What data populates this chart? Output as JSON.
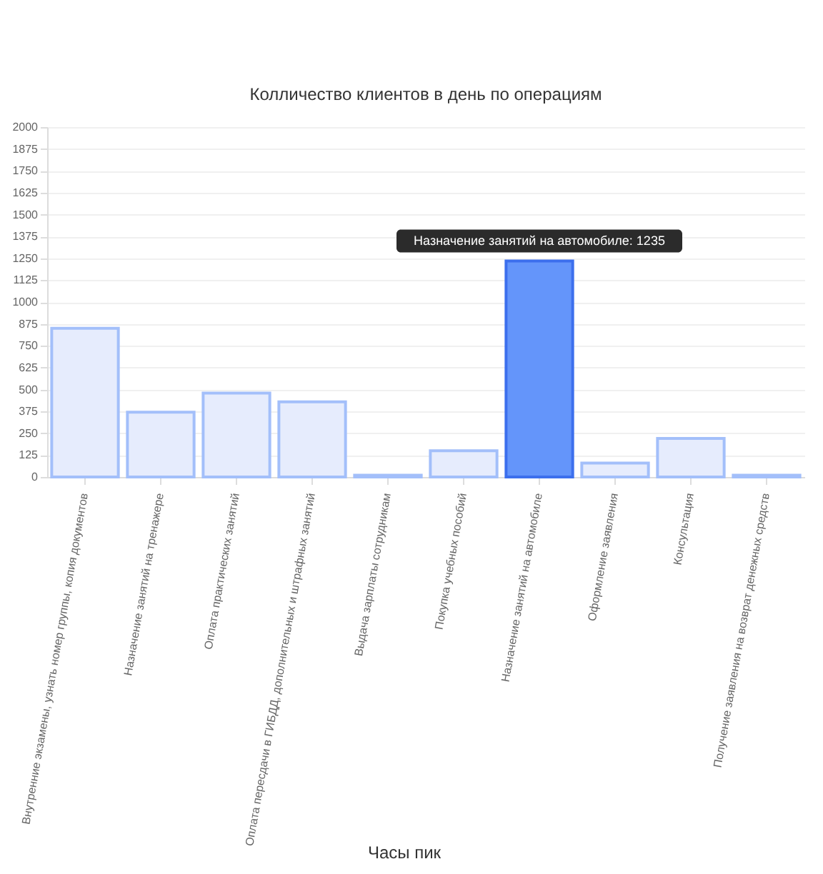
{
  "chart_data": {
    "type": "bar",
    "title": "Колличество клиентов в день по операциям",
    "categories": [
      "Внутренние экзамены, узнать номер группы, копия документов",
      "Назначение занятий на тренажере",
      "Оплата практических занятий",
      "Оплата пересдачи в ГИБДД, дополнительных и штрафных занятий",
      "Выдача зарплаты сотрудникам",
      "Покупка учебных пособий",
      "Назначение занятий на автомобиле",
      "Оформление заявления",
      "Консультация",
      "Получение заявления на возврат денежных средств"
    ],
    "values": [
      850,
      370,
      480,
      430,
      10,
      150,
      1235,
      80,
      220,
      10
    ],
    "colors": [
      "#e6ecfd",
      "#e6ecfd",
      "#e6ecfd",
      "#e6ecfd",
      "#e6ecfd",
      "#e6ecfd",
      "#6495fa",
      "#e6ecfd",
      "#e6ecfd",
      "#e6ecfd"
    ],
    "ylim": [
      0,
      2000
    ],
    "yticks": [
      0,
      125,
      250,
      375,
      500,
      625,
      750,
      875,
      1000,
      1125,
      1250,
      1375,
      1500,
      1625,
      1750,
      1875,
      2000
    ],
    "grid": "y",
    "annotations": [
      {
        "text": "Назначение занятий на автомобиле: 1235",
        "x": "Назначение занятий на автомобиле",
        "y": 1235
      },
      "Часы пик"
    ]
  }
}
